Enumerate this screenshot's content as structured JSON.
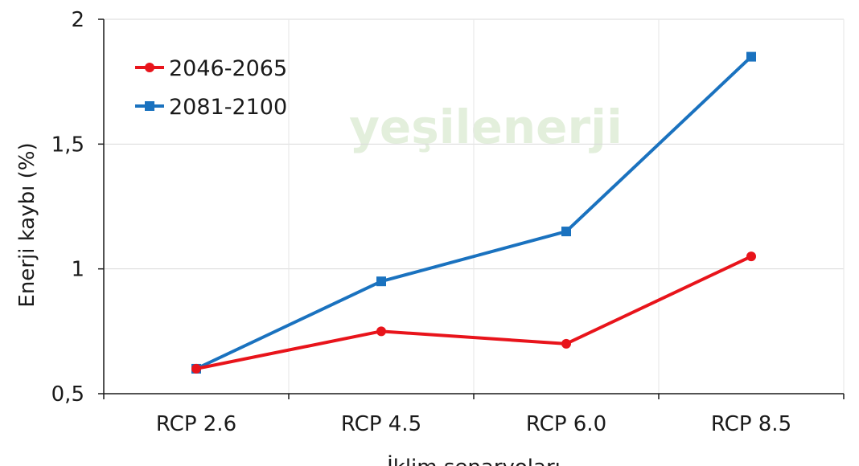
{
  "chart_data": {
    "type": "line",
    "title": "",
    "xlabel": "İklim senaryoları",
    "ylabel": "Enerji kaybı (%)",
    "categories": [
      "RCP 2.6",
      "RCP 4.5",
      "RCP 6.0",
      "RCP 8.5"
    ],
    "ylim": [
      0.5,
      2
    ],
    "yticks": [
      0.5,
      1,
      1.5,
      2
    ],
    "ytick_labels": [
      "0,5",
      "1",
      "1,5",
      "2"
    ],
    "grid": true,
    "legend": "top-left",
    "series": [
      {
        "name": "2046-2065",
        "values": [
          0.6,
          0.75,
          0.7,
          1.05
        ],
        "color": "#e8141b",
        "marker": "circle"
      },
      {
        "name": "2081-2100",
        "values": [
          0.6,
          0.95,
          1.15,
          1.85
        ],
        "color": "#1a72bf",
        "marker": "square"
      }
    ]
  },
  "watermark": {
    "text": "yeşilenerji"
  }
}
